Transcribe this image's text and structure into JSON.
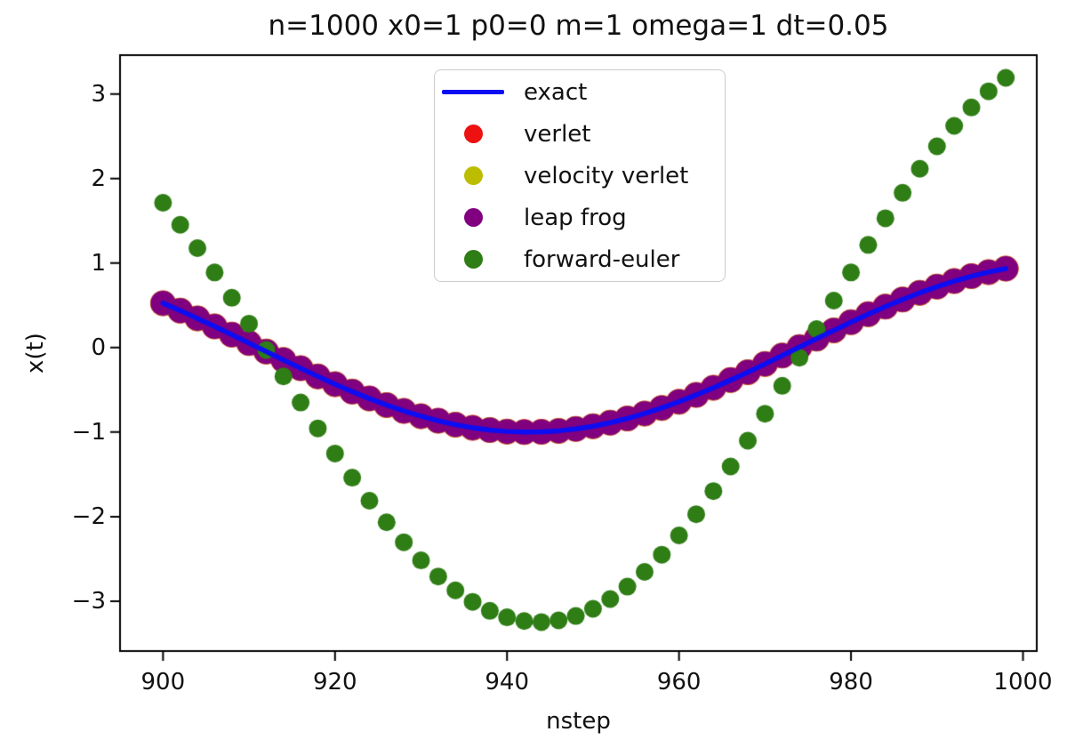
{
  "figure": {
    "title": "n=1000 x0=1 p0=0 m=1 omega=1 dt=0.05",
    "background_color": "#ffffff"
  },
  "chart_data": {
    "type": "line+scatter",
    "title": "n=1000 x0=1 p0=0 m=1 omega=1 dt=0.05",
    "xlabel": "nstep",
    "ylabel": "x(t)",
    "xlim": [
      895.0,
      1001.6
    ],
    "ylim": [
      -3.59,
      3.46
    ],
    "x_ticks": [
      900,
      920,
      940,
      960,
      980,
      1000
    ],
    "y_ticks": [
      -3,
      -2,
      -1,
      0,
      1,
      2,
      3
    ],
    "grid": false,
    "legend": {
      "position": "upper center",
      "entries": [
        "exact",
        "verlet",
        "velocity verlet",
        "leap frog",
        "forward-euler"
      ]
    },
    "x": [
      900,
      902,
      904,
      906,
      908,
      910,
      912,
      914,
      916,
      918,
      920,
      922,
      924,
      926,
      928,
      930,
      932,
      934,
      936,
      938,
      940,
      942,
      944,
      946,
      948,
      950,
      952,
      954,
      956,
      958,
      960,
      962,
      964,
      966,
      968,
      970,
      972,
      974,
      976,
      978,
      980,
      982,
      984,
      986,
      988,
      990,
      992,
      994,
      996,
      998
    ],
    "series": [
      {
        "name": "exact",
        "style": "line",
        "color": "#0d0df2",
        "line_width": 5.5,
        "values": [
          0.5253,
          0.4377,
          0.3458,
          0.2504,
          0.1525,
          0.0531,
          -0.0469,
          -0.1464,
          -0.2444,
          -0.34,
          -0.4322,
          -0.52,
          -0.6027,
          -0.6794,
          -0.7492,
          -0.8116,
          -0.8659,
          -0.9115,
          -0.948,
          -0.975,
          -0.9923,
          -0.9997,
          -0.9971,
          -0.9845,
          -0.9621,
          -0.9301,
          -0.8888,
          -0.8386,
          -0.78,
          -0.7136,
          -0.6401,
          -0.5603,
          -0.4748,
          -0.3845,
          -0.2904,
          -0.1935,
          -0.0945,
          0.0053,
          0.1051,
          0.2039,
          0.3006,
          0.3943,
          0.4841,
          0.569,
          0.6483,
          0.721,
          0.7866,
          0.8443,
          0.8936,
          0.9339
        ]
      },
      {
        "name": "verlet",
        "style": "scatter",
        "color": "#ee1111",
        "marker_radius": 14.5,
        "values": [
          0.5253,
          0.4377,
          0.3458,
          0.2504,
          0.1525,
          0.0531,
          -0.0469,
          -0.1464,
          -0.2444,
          -0.34,
          -0.4322,
          -0.52,
          -0.6027,
          -0.6794,
          -0.7492,
          -0.8116,
          -0.8659,
          -0.9115,
          -0.948,
          -0.975,
          -0.9923,
          -0.9997,
          -0.9971,
          -0.9845,
          -0.9621,
          -0.9301,
          -0.8888,
          -0.8386,
          -0.78,
          -0.7136,
          -0.6401,
          -0.5603,
          -0.4748,
          -0.3845,
          -0.2904,
          -0.1935,
          -0.0945,
          0.0053,
          0.1051,
          0.2039,
          0.3006,
          0.3943,
          0.4841,
          0.569,
          0.6483,
          0.721,
          0.7866,
          0.8443,
          0.8936,
          0.9339
        ]
      },
      {
        "name": "velocity verlet",
        "style": "scatter",
        "color": "#bcbd00",
        "marker_radius": 14.2,
        "values": [
          0.5253,
          0.4377,
          0.3458,
          0.2504,
          0.1525,
          0.0531,
          -0.0469,
          -0.1464,
          -0.2444,
          -0.34,
          -0.4322,
          -0.52,
          -0.6027,
          -0.6794,
          -0.7492,
          -0.8116,
          -0.8659,
          -0.9115,
          -0.948,
          -0.975,
          -0.9923,
          -0.9997,
          -0.9971,
          -0.9845,
          -0.9621,
          -0.9301,
          -0.8888,
          -0.8386,
          -0.78,
          -0.7136,
          -0.6401,
          -0.5603,
          -0.4748,
          -0.3845,
          -0.2904,
          -0.1935,
          -0.0945,
          0.0053,
          0.1051,
          0.2039,
          0.3006,
          0.3943,
          0.4841,
          0.569,
          0.6483,
          0.721,
          0.7866,
          0.8443,
          0.8936,
          0.9339
        ]
      },
      {
        "name": "leap frog",
        "style": "scatter",
        "color": "#800080",
        "marker_radius": 14,
        "values": [
          0.5253,
          0.4377,
          0.3458,
          0.2504,
          0.1525,
          0.0531,
          -0.0469,
          -0.1464,
          -0.2444,
          -0.34,
          -0.4322,
          -0.52,
          -0.6027,
          -0.6794,
          -0.7492,
          -0.8116,
          -0.8659,
          -0.9115,
          -0.948,
          -0.975,
          -0.9923,
          -0.9997,
          -0.9971,
          -0.9845,
          -0.9621,
          -0.9301,
          -0.8888,
          -0.8386,
          -0.78,
          -0.7136,
          -0.6401,
          -0.5603,
          -0.4748,
          -0.3845,
          -0.2904,
          -0.1935,
          -0.0945,
          0.0053,
          0.1051,
          0.2039,
          0.3006,
          0.3943,
          0.4841,
          0.569,
          0.6483,
          0.721,
          0.7866,
          0.8443,
          0.8936,
          0.9339
        ]
      },
      {
        "name": "forward-euler",
        "style": "scatter",
        "color": "#2e7d15",
        "marker_radius": 10,
        "values": [
          1.713,
          1.453,
          1.177,
          0.889,
          0.589,
          0.283,
          -0.028,
          -0.34,
          -0.65,
          -0.956,
          -1.253,
          -1.539,
          -1.812,
          -2.067,
          -2.303,
          -2.518,
          -2.708,
          -2.872,
          -3.008,
          -3.115,
          -3.191,
          -3.235,
          -3.247,
          -3.227,
          -3.175,
          -3.09,
          -2.974,
          -2.828,
          -2.653,
          -2.45,
          -2.222,
          -1.971,
          -1.698,
          -1.407,
          -1.101,
          -0.782,
          -0.453,
          -0.119,
          0.219,
          0.556,
          0.889,
          1.215,
          1.53,
          1.831,
          2.116,
          2.381,
          2.624,
          2.841,
          3.032,
          3.192
        ]
      }
    ],
    "draw_order": [
      "verlet",
      "velocity verlet",
      "leap frog",
      "forward-euler",
      "exact"
    ]
  }
}
